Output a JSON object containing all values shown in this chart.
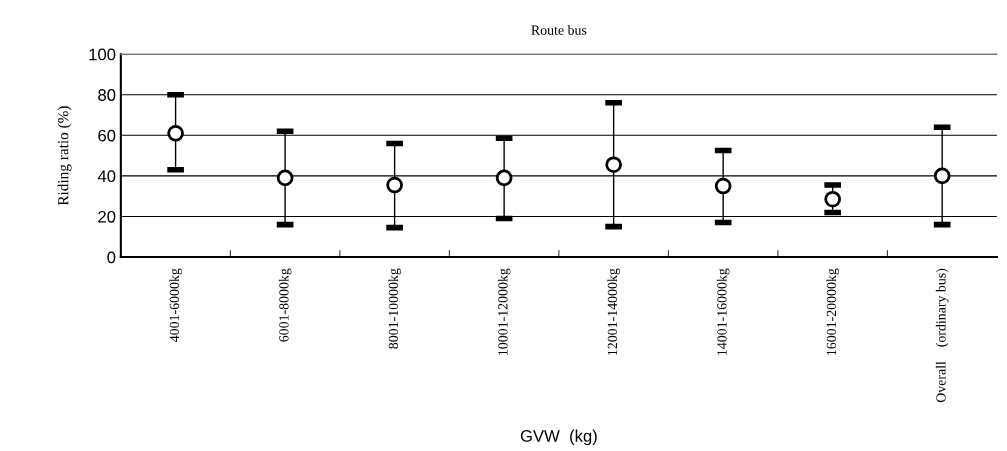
{
  "chart_data": {
    "type": "scatter",
    "title": "Route bus",
    "xlabel": "GVW  (kg)",
    "ylabel": "Riding ratio (%)",
    "categories": [
      "4001-6000kg",
      "6001-8000kg",
      "8001-10000kg",
      "10001-12000kg",
      "12001-14000kg",
      "14001-16000kg",
      "16001-20000kg",
      "Overall    (ordinary bus)"
    ],
    "series": [
      {
        "color": "#000000",
        "values": [
          61,
          39,
          35.5,
          39,
          45.5,
          35,
          28.5,
          40
        ],
        "errors": [
          [
            43,
            80
          ],
          [
            16,
            62
          ],
          [
            14.5,
            56
          ],
          [
            19,
            58.5
          ],
          [
            15,
            76
          ],
          [
            17,
            52.5
          ],
          [
            22,
            35.5
          ],
          [
            16,
            64
          ]
        ]
      }
    ],
    "ylim": [
      0,
      100
    ],
    "yticks": [
      0,
      20,
      40,
      60,
      80,
      100
    ],
    "grid": "y",
    "marker": "circle"
  }
}
